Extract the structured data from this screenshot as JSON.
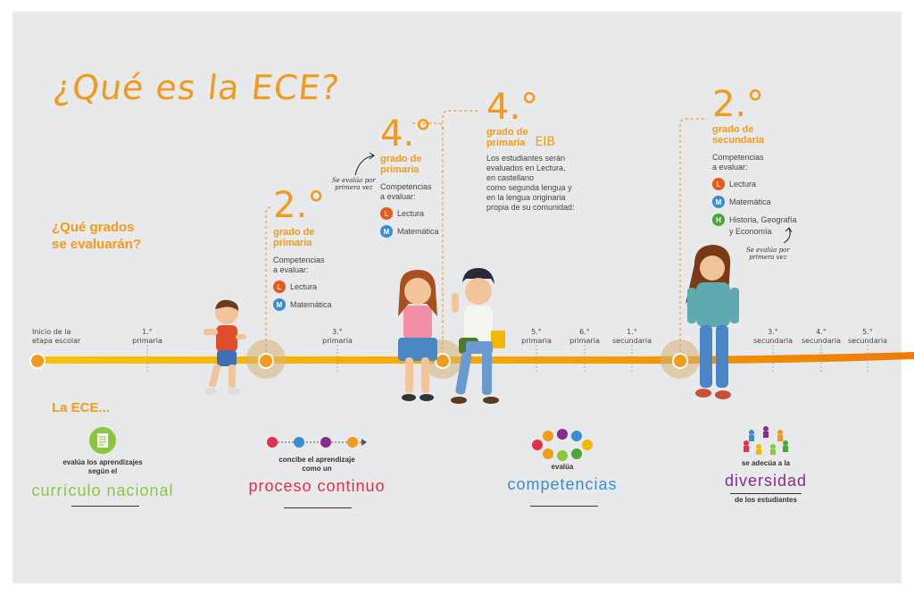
{
  "title": "¿Qué es la ECE?",
  "question": {
    "line1": "¿Qué grados",
    "line2": "se evaluarán?"
  },
  "competencies_label": {
    "line1": "Competencias",
    "line2": "a evaluar:"
  },
  "new_note": {
    "line1": "Se evalúa por",
    "line2": "primera vez"
  },
  "grades": [
    {
      "number": "2.°",
      "line1": "grado de",
      "line2": "primaria",
      "competencies": [
        "Lectura",
        "Matemática"
      ]
    },
    {
      "number": "4.°",
      "line1": "grado de",
      "line2": "primaria",
      "competencies": [
        "Lectura",
        "Matemática"
      ]
    },
    {
      "number": "4.°",
      "line1": "grado de",
      "line2": "primaria",
      "tag": "EIB",
      "description": [
        "Los estudiantes serán",
        "evaluados en Lectura,",
        "en castellano",
        "como segunda lengua y",
        "en la lengua originaria",
        "propia de su comunidad:"
      ]
    },
    {
      "number": "2.°",
      "line1": "grado de",
      "line2": "secundaria",
      "competencies": [
        "Lectura",
        "Matemática",
        "Historia, Geografía",
        "y Economía"
      ]
    }
  ],
  "badges": {
    "lectura": "L",
    "matematica": "M",
    "historia": "H"
  },
  "colors": {
    "lectura": "#e8581c",
    "matematica": "#3a8dd0",
    "historia": "#4aa63a",
    "accent": "#f29a1c"
  },
  "timeline": {
    "start": {
      "line1": "Inicio de la",
      "line2": "etapa escolar"
    },
    "ticks": [
      {
        "num": "1.°",
        "label": "primaria"
      },
      {
        "num": "3.°",
        "label": "primaria"
      },
      {
        "num": "5.°",
        "label": "primaria"
      },
      {
        "num": "6.°",
        "label": "primaria"
      },
      {
        "num": "1.°",
        "label": "secundaria"
      },
      {
        "num": "3.°",
        "label": "secundaria"
      },
      {
        "num": "4.°",
        "label": "secundaria"
      },
      {
        "num": "5.°",
        "label": "secundaria"
      }
    ]
  },
  "ece_label": "La ECE...",
  "features": [
    {
      "small": [
        "evalúa los aprendizajes",
        "según el"
      ],
      "big": "currículo nacional",
      "color": "#8cc63f",
      "icon": "document-icon"
    },
    {
      "small": [
        "concibe el aprendizaje",
        "como un"
      ],
      "big": "proceso continuo",
      "color": "#e0314b",
      "icon": "progress-dots-icon"
    },
    {
      "small": [
        "evalúa"
      ],
      "big": "competencias",
      "color": "#3a8dd0",
      "icon": "competencies-circle-icon"
    },
    {
      "small": [
        "se adecúa a la"
      ],
      "big": "diversidad",
      "small_after": "de los estudiantes",
      "color": "#8a2a8a",
      "icon": "people-circle-icon"
    }
  ]
}
